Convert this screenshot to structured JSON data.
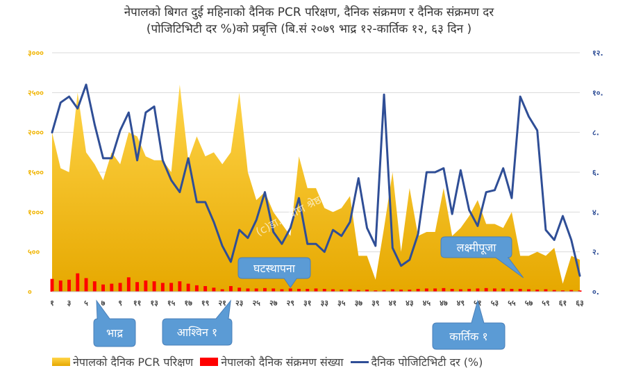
{
  "title_line1": "नेपालको बिगत दुई महिनाको दैनिक PCR परिक्षण, दैनिक संक्रमण र दैनिक संक्रमण दर",
  "title_line2": "(पोजिटिभिटी दर %)को प्रबृत्ति (बि.सं २०७९ भाद्र १२-कार्तिक १२, ६३ दिन )",
  "watermark": "(c)डा. प्रवीण श्रेष्ठ",
  "legend": {
    "pcr": "नेपालको दैनिक PCR परिक्षण",
    "cases": "नेपालको दैनिक संक्रमण संख्या",
    "rate": "दैनिक पोजिटिभिटी दर (%)"
  },
  "colors": {
    "area_top": "#ffd54a",
    "area_bottom": "#e6a800",
    "bars": "#ff0000",
    "line": "#2f4e96",
    "left_axis": "#f0b400",
    "right_axis": "#2f4e96",
    "callout": "#5b9bd5"
  },
  "callouts": [
    {
      "text": "घटस्थापना",
      "day": 29
    },
    {
      "text": "लक्ष्मीपूजा",
      "day": 58
    },
    {
      "text": "भाद्र",
      "day": 5
    },
    {
      "text": "आश्विन  १",
      "day": 21
    },
    {
      "text": "कार्तिक  १",
      "day": 51
    }
  ],
  "chart_data": {
    "type": "area",
    "x": [
      1,
      2,
      3,
      4,
      5,
      6,
      7,
      8,
      9,
      10,
      11,
      12,
      13,
      14,
      15,
      16,
      17,
      18,
      19,
      20,
      21,
      22,
      23,
      24,
      25,
      26,
      27,
      28,
      29,
      30,
      31,
      32,
      33,
      34,
      35,
      36,
      37,
      38,
      39,
      40,
      41,
      42,
      43,
      44,
      45,
      46,
      47,
      48,
      49,
      50,
      51,
      52,
      53,
      54,
      55,
      56,
      57,
      58,
      59,
      60,
      61,
      62,
      63
    ],
    "x_tick_labels": [
      "१",
      "३",
      "५",
      "७",
      "९",
      "११",
      "१३",
      "१५",
      "१७",
      "१९",
      "२१",
      "२३",
      "२५",
      "२७",
      "२९",
      "३१",
      "३३",
      "३५",
      "३७",
      "३९",
      "४१",
      "४३",
      "४५",
      "४७",
      "४९",
      "५१",
      "५३",
      "५५",
      "५७",
      "५९",
      "६१",
      "६३"
    ],
    "y_left_ticks": [
      "०",
      "५००",
      "१०००",
      "१५००",
      "२०००",
      "२५००",
      "३०००"
    ],
    "y_right_ticks": [
      "०.",
      "२.",
      "४.",
      "६.",
      "८.",
      "१०.",
      "१२."
    ],
    "ylim_left": [
      0,
      3000
    ],
    "ylim_right": [
      0,
      12
    ],
    "series": [
      {
        "name": "नेपालको दैनिक PCR परिक्षण",
        "axis": "left",
        "kind": "area",
        "values": [
          2000,
          1550,
          1500,
          2500,
          1750,
          1600,
          1400,
          1750,
          1600,
          2000,
          1950,
          1700,
          1650,
          1650,
          1500,
          2600,
          1650,
          1950,
          1700,
          1750,
          1600,
          1750,
          2500,
          1500,
          1150,
          1250,
          1000,
          850,
          700,
          1700,
          1300,
          1300,
          1050,
          1000,
          1050,
          1200,
          450,
          450,
          150,
          800,
          1500,
          500,
          1300,
          700,
          750,
          750,
          1300,
          700,
          800,
          950,
          1150,
          850,
          850,
          800,
          1000,
          450,
          450,
          500,
          450,
          550,
          100,
          450,
          400
        ]
      },
      {
        "name": "नेपालको दैनिक संक्रमण संख्या",
        "axis": "left",
        "kind": "bar",
        "values": [
          160,
          140,
          150,
          230,
          170,
          130,
          90,
          100,
          110,
          180,
          120,
          140,
          130,
          110,
          110,
          130,
          100,
          80,
          70,
          50,
          30,
          70,
          50,
          40,
          40,
          45,
          40,
          30,
          40,
          35,
          35,
          40,
          35,
          30,
          25,
          30,
          20,
          25,
          15,
          20,
          30,
          25,
          25,
          35,
          40,
          40,
          45,
          35,
          30,
          35,
          40,
          45,
          40,
          40,
          35,
          35,
          30,
          25,
          30,
          20,
          15,
          20,
          15
        ]
      },
      {
        "name": "दैनिक पोजिटिभिटी दर (%)",
        "axis": "right",
        "kind": "line",
        "values": [
          8.0,
          9.5,
          9.8,
          9.2,
          10.4,
          8.4,
          6.7,
          6.7,
          8.1,
          9.0,
          6.6,
          9.0,
          9.3,
          6.6,
          5.6,
          5.0,
          6.7,
          4.5,
          4.5,
          3.5,
          2.3,
          1.5,
          3.1,
          2.7,
          3.6,
          5.0,
          3.0,
          2.4,
          3.2,
          4.7,
          2.4,
          2.4,
          2.0,
          3.1,
          2.8,
          3.5,
          5.7,
          3.2,
          2.3,
          9.9,
          2.2,
          1.3,
          1.6,
          2.9,
          6.0,
          6.0,
          6.2,
          3.9,
          6.1,
          4.1,
          3.3,
          5.0,
          5.1,
          6.2,
          4.7,
          9.8,
          8.8,
          8.1,
          3.1,
          2.6,
          3.8,
          2.6,
          0.8
        ]
      }
    ]
  }
}
